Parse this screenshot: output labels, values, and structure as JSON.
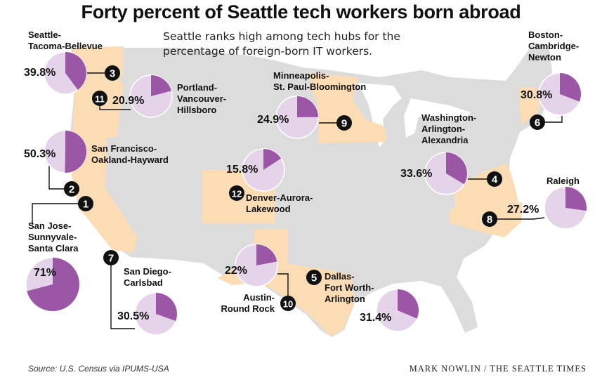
{
  "title": "Forty percent of Seattle tech workers born abroad",
  "subtitle": "Seattle ranks high among tech hubs for the percentage of foreign-born IT workers.",
  "source": "Source: U.S. Census via IPUMS-USA",
  "credit": "MARK NOWLIN / THE SEATTLE TIMES",
  "colors": {
    "foreign": "#9b56a6",
    "native": "#e5d4e9",
    "highlight": "#fbdcb4",
    "land": "#dcdcdc",
    "water": "#ffffff"
  },
  "chart_data": {
    "type": "pie",
    "series_meaning": "Percentage of foreign-born IT workers",
    "metros": [
      {
        "rank": 1,
        "name": "San Jose-Sunnyvale-Santa Clara",
        "value": 71,
        "label": "71%"
      },
      {
        "rank": 2,
        "name": "San Francisco-Oakland-Hayward",
        "value": 50.3,
        "label": "50.3%"
      },
      {
        "rank": 3,
        "name": "Seattle-Tacoma-Bellevue",
        "value": 39.8,
        "label": "39.8%"
      },
      {
        "rank": 4,
        "name": "Washington-Arlington-Alexandria",
        "value": 33.6,
        "label": "33.6%"
      },
      {
        "rank": 5,
        "name": "Dallas-Fort Worth-Arlington",
        "value": 31.4,
        "label": "31.4%"
      },
      {
        "rank": 6,
        "name": "Boston-Cambridge-Newton",
        "value": 30.8,
        "label": "30.8%"
      },
      {
        "rank": 7,
        "name": "San Diego-Carlsbad",
        "value": 30.5,
        "label": "30.5%"
      },
      {
        "rank": 8,
        "name": "Raleigh",
        "value": 27.2,
        "label": "27.2%"
      },
      {
        "rank": 9,
        "name": "Minneapolis-St. Paul-Bloomington",
        "value": 24.9,
        "label": "24.9%"
      },
      {
        "rank": 10,
        "name": "Austin-Round Rock",
        "value": 22,
        "label": "22%"
      },
      {
        "rank": 11,
        "name": "Portland-Vancouver-Hillsboro",
        "value": 20.9,
        "label": "20.9%"
      },
      {
        "rank": 12,
        "name": "Denver-Aurora-Lakewood",
        "value": 15.8,
        "label": "15.8%"
      }
    ],
    "name_lines": {
      "1": [
        "San Jose-",
        "Sunnyvale-",
        "Santa Clara"
      ],
      "2": [
        "San Francisco-",
        "Oakland-Hayward"
      ],
      "3": [
        "Seattle-",
        "Tacoma-Bellevue"
      ],
      "4": [
        "Washington-",
        "Arlington-",
        "Alexandria"
      ],
      "5": [
        "Dallas-",
        "Fort Worth-",
        "Arlington"
      ],
      "6": [
        "Boston-",
        "Cambridge-",
        "Newton"
      ],
      "7": [
        "San Diego-",
        "Carlsbad"
      ],
      "8": [
        "Raleigh"
      ],
      "9": [
        "Minneapolis-",
        "St. Paul-Bloomington"
      ],
      "10": [
        "Austin-",
        "Round Rock"
      ],
      "11": [
        "Portland-",
        "Vancouver-",
        "Hillsboro"
      ],
      "12": [
        "Denver-Aurora-",
        "Lakewood"
      ]
    }
  }
}
